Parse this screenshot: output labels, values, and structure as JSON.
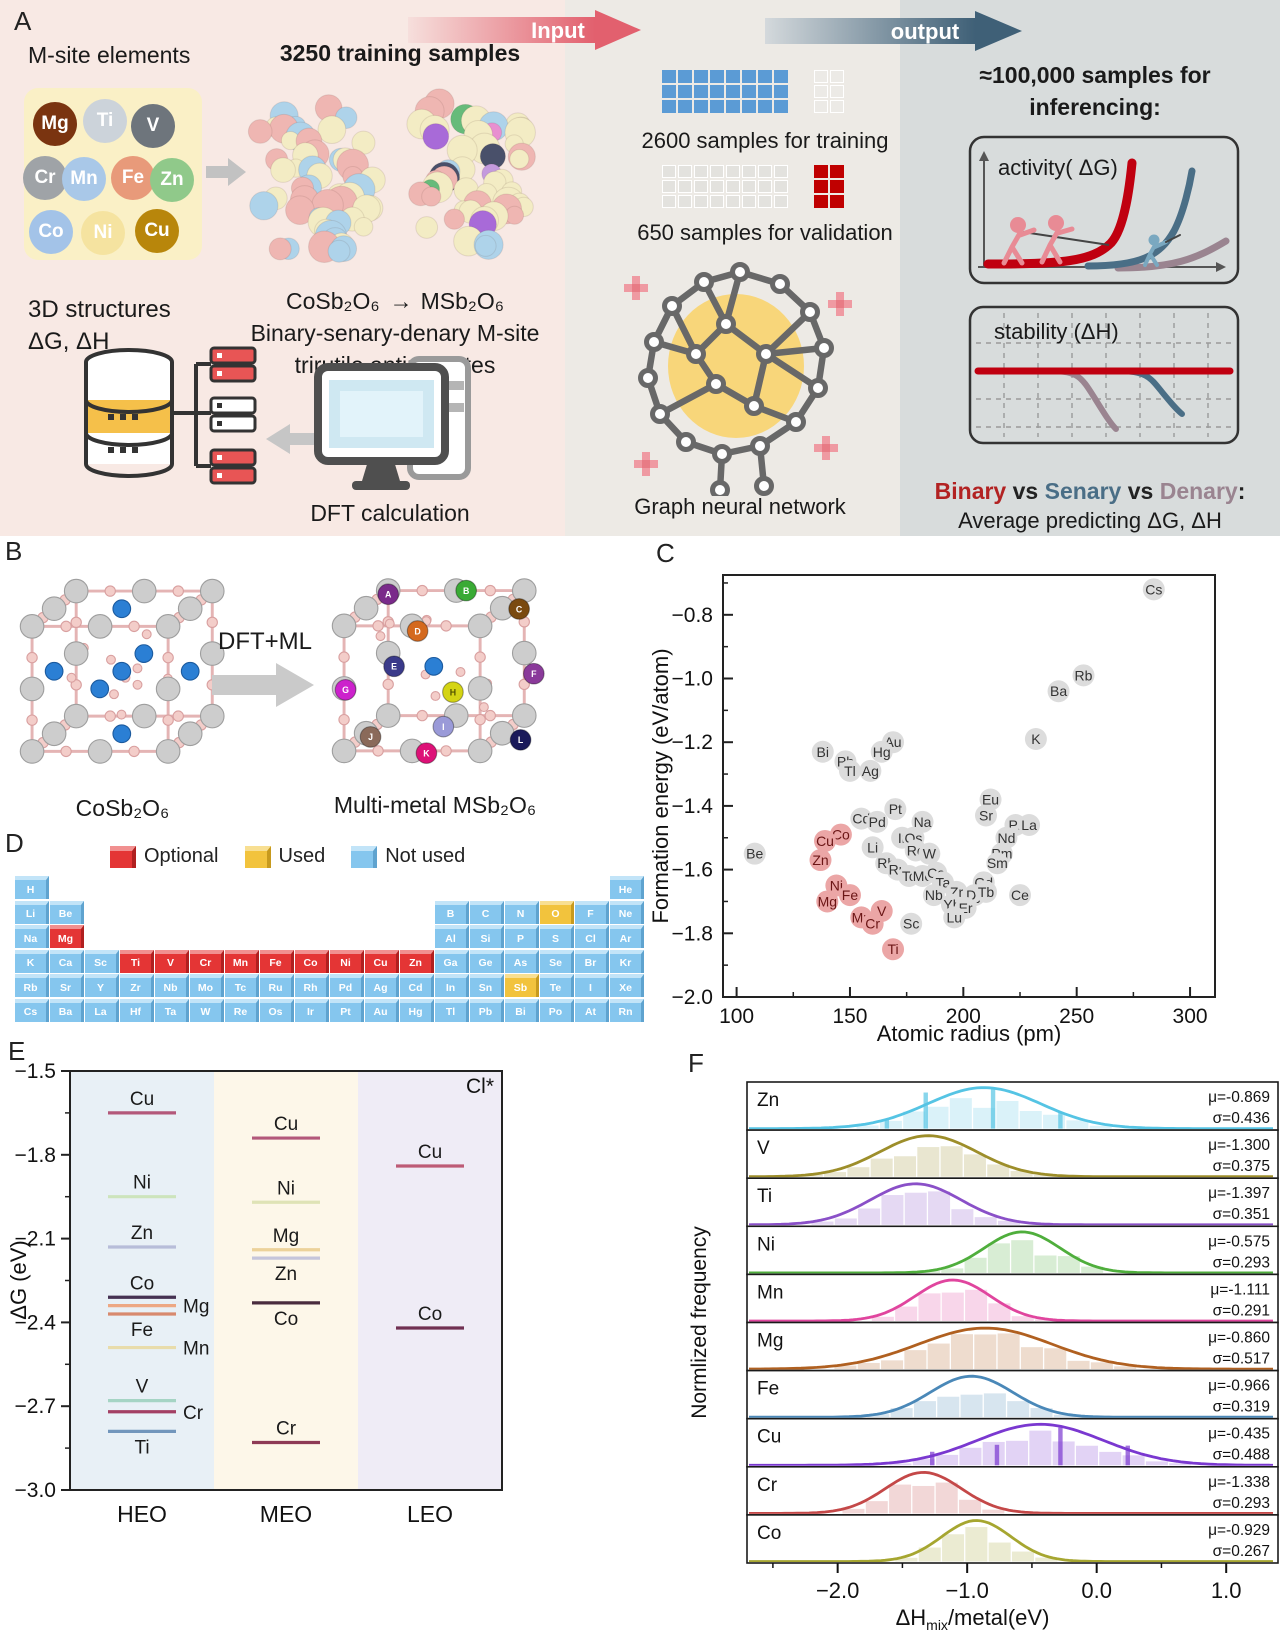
{
  "panel_labels": {
    "A": "A",
    "B": "B",
    "C": "C",
    "D": "D",
    "E": "E",
    "F": "F"
  },
  "panelA": {
    "input_arrow_label": "Input",
    "output_arrow_label": "output",
    "m_site_title": "M-site elements",
    "m_site_elements": [
      {
        "symbol": "Mg",
        "bg": "#7a3410"
      },
      {
        "symbol": "Ti",
        "bg": "#ccd3da"
      },
      {
        "symbol": "V",
        "bg": "#6e757c"
      },
      {
        "symbol": "Cr",
        "bg": "#9fa3a7"
      },
      {
        "symbol": "Mn",
        "bg": "#a9c8e8"
      },
      {
        "symbol": "Fe",
        "bg": "#e89a7a"
      },
      {
        "symbol": "Zn",
        "bg": "#90c98a"
      },
      {
        "symbol": "Co",
        "bg": "#a3c3e8"
      },
      {
        "symbol": "Ni",
        "bg": "#f5e3a0"
      },
      {
        "symbol": "Cu",
        "bg": "#b8860b"
      }
    ],
    "training_title": "3250 training samples",
    "formula_left": "CoSb₂O₆",
    "formula_arrow": "→",
    "formula_right": "MSb₂O₆",
    "training_sub1": "Binary-senary-denary M-site",
    "training_sub2": "trirutile antimonates",
    "structures_line1": "3D structures",
    "structures_line2": "ΔG, ΔH",
    "dft_label": "DFT calculation",
    "train_caption": "2600 samples for training",
    "val_caption": "650 samples for validation",
    "gnn_label": "Graph neural network",
    "inference_line1": "≈100,000 samples for",
    "inference_line2": "inferencing:",
    "activity_label": "activity( ΔG)",
    "stability_label": "stability (ΔH)",
    "compare_parts": [
      {
        "text": "Binary",
        "color": "#b22222"
      },
      {
        "text": " vs ",
        "color": "#222222"
      },
      {
        "text": "Senary",
        "color": "#4a6e86"
      },
      {
        "text": " vs ",
        "color": "#222222"
      },
      {
        "text": "Denary",
        "color": "#9a8490"
      },
      {
        "text": ":",
        "color": "#222222"
      }
    ],
    "compare_line2": "Average predicting  ΔG, ΔH"
  },
  "panelB": {
    "left_formula": "CoSb₂O₆",
    "arrow_label": "DFT+ML",
    "right_formula": "Multi-metal MSb₂O₆",
    "sites": [
      {
        "letter": "A",
        "color": "#7a2a8a",
        "tc": "#ffffff"
      },
      {
        "letter": "B",
        "color": "#3aaa35",
        "tc": "#ffffff"
      },
      {
        "letter": "C",
        "color": "#7a4a10",
        "tc": "#ffffff"
      },
      {
        "letter": "D",
        "color": "#d4691e",
        "tc": "#ffffff"
      },
      {
        "letter": "E",
        "color": "#3a3a8a",
        "tc": "#ffffff"
      },
      {
        "letter": "F",
        "color": "#8a3a9a",
        "tc": "#ffffff"
      },
      {
        "letter": "G",
        "color": "#cc22cc",
        "tc": "#ffffff"
      },
      {
        "letter": "H",
        "color": "#d4d414",
        "tc": "#555500"
      },
      {
        "letter": "I",
        "color": "#9a9ad8",
        "tc": "#ffffff"
      },
      {
        "letter": "J",
        "color": "#8a6a5a",
        "tc": "#ffffff"
      },
      {
        "letter": "K",
        "color": "#dd1177",
        "tc": "#ffffff"
      },
      {
        "letter": "L",
        "color": "#1a1a5a",
        "tc": "#ffffff"
      }
    ]
  },
  "panelD": {
    "legend": [
      {
        "label": "Optional",
        "type": "o"
      },
      {
        "label": "Used",
        "type": "u"
      },
      {
        "label": "Not used",
        "type": "n"
      }
    ],
    "rows": [
      [
        [
          "H",
          1,
          "n"
        ],
        [
          "He",
          18,
          "n"
        ]
      ],
      [
        [
          "Li",
          1,
          "n"
        ],
        [
          "Be",
          2,
          "n"
        ],
        [
          "B",
          13,
          "n"
        ],
        [
          "C",
          14,
          "n"
        ],
        [
          "N",
          15,
          "n"
        ],
        [
          "O",
          16,
          "u"
        ],
        [
          "F",
          17,
          "n"
        ],
        [
          "Ne",
          18,
          "n"
        ]
      ],
      [
        [
          "Na",
          1,
          "n"
        ],
        [
          "Mg",
          2,
          "o"
        ],
        [
          "Al",
          13,
          "n"
        ],
        [
          "Si",
          14,
          "n"
        ],
        [
          "P",
          15,
          "n"
        ],
        [
          "S",
          16,
          "n"
        ],
        [
          "Cl",
          17,
          "n"
        ],
        [
          "Ar",
          18,
          "n"
        ]
      ],
      [
        [
          "K",
          1,
          "n"
        ],
        [
          "Ca",
          2,
          "n"
        ],
        [
          "Sc",
          3,
          "n"
        ],
        [
          "Ti",
          4,
          "o"
        ],
        [
          "V",
          5,
          "o"
        ],
        [
          "Cr",
          6,
          "o"
        ],
        [
          "Mn",
          7,
          "o"
        ],
        [
          "Fe",
          8,
          "o"
        ],
        [
          "Co",
          9,
          "o"
        ],
        [
          "Ni",
          10,
          "o"
        ],
        [
          "Cu",
          11,
          "o"
        ],
        [
          "Zn",
          12,
          "o"
        ],
        [
          "Ga",
          13,
          "n"
        ],
        [
          "Ge",
          14,
          "n"
        ],
        [
          "As",
          15,
          "n"
        ],
        [
          "Se",
          16,
          "n"
        ],
        [
          "Br",
          17,
          "n"
        ],
        [
          "Kr",
          18,
          "n"
        ]
      ],
      [
        [
          "Rb",
          1,
          "n"
        ],
        [
          "Sr",
          2,
          "n"
        ],
        [
          "Y",
          3,
          "n"
        ],
        [
          "Zr",
          4,
          "n"
        ],
        [
          "Nb",
          5,
          "n"
        ],
        [
          "Mo",
          6,
          "n"
        ],
        [
          "Tc",
          7,
          "n"
        ],
        [
          "Ru",
          8,
          "n"
        ],
        [
          "Rh",
          9,
          "n"
        ],
        [
          "Pd",
          10,
          "n"
        ],
        [
          "Ag",
          11,
          "n"
        ],
        [
          "Cd",
          12,
          "n"
        ],
        [
          "In",
          13,
          "n"
        ],
        [
          "Sn",
          14,
          "n"
        ],
        [
          "Sb",
          15,
          "u"
        ],
        [
          "Te",
          16,
          "n"
        ],
        [
          "I",
          17,
          "n"
        ],
        [
          "Xe",
          18,
          "n"
        ]
      ],
      [
        [
          "Cs",
          1,
          "n"
        ],
        [
          "Ba",
          2,
          "n"
        ],
        [
          "La",
          3,
          "n"
        ],
        [
          "Hf",
          4,
          "n"
        ],
        [
          "Ta",
          5,
          "n"
        ],
        [
          "W",
          6,
          "n"
        ],
        [
          "Re",
          7,
          "n"
        ],
        [
          "Os",
          8,
          "n"
        ],
        [
          "Ir",
          9,
          "n"
        ],
        [
          "Pt",
          10,
          "n"
        ],
        [
          "Au",
          11,
          "n"
        ],
        [
          "Hg",
          12,
          "n"
        ],
        [
          "Tl",
          13,
          "n"
        ],
        [
          "Pb",
          14,
          "n"
        ],
        [
          "Bi",
          15,
          "n"
        ],
        [
          "Po",
          16,
          "n"
        ],
        [
          "At",
          17,
          "n"
        ],
        [
          "Rn",
          18,
          "n"
        ]
      ]
    ]
  },
  "chart_data": [
    {
      "id": "panel-c",
      "type": "scatter",
      "xlabel": "Atomic radius (pm)",
      "ylabel": "Formation energy (eV/atom)",
      "xlim": [
        94,
        311
      ],
      "ylim": [
        -2.0,
        -0.675
      ],
      "xticks": [
        100,
        150,
        200,
        250,
        300
      ],
      "yticks": [
        -0.8,
        -1.0,
        -1.2,
        -1.4,
        -1.6,
        -1.8,
        -2.0
      ],
      "point_color": "#dcdcdc",
      "highlight_color": "#eba6a6",
      "label_color": "#333333",
      "highlight_label_color": "#6b1515",
      "points": [
        [
          "Cs",
          284,
          -0.72,
          0
        ],
        [
          "Rb",
          253,
          -0.99,
          0
        ],
        [
          "Ba",
          242,
          -1.04,
          0
        ],
        [
          "K",
          232,
          -1.19,
          0
        ],
        [
          "Au",
          169,
          -1.2,
          0
        ],
        [
          "Hg",
          164,
          -1.23,
          0
        ],
        [
          "Bi",
          138,
          -1.23,
          0
        ],
        [
          "Pb",
          148,
          -1.26,
          0
        ],
        [
          "Tl",
          150,
          -1.29,
          0
        ],
        [
          "Ag",
          159,
          -1.29,
          0
        ],
        [
          "Eu",
          212,
          -1.38,
          0
        ],
        [
          "Pt",
          170,
          -1.41,
          0
        ],
        [
          "Sr",
          210,
          -1.43,
          0
        ],
        [
          "Cd",
          155,
          -1.44,
          0
        ],
        [
          "Pd",
          162,
          -1.45,
          0
        ],
        [
          "Na",
          182,
          -1.45,
          0
        ],
        [
          "Pr",
          223,
          -1.46,
          0
        ],
        [
          "La",
          229,
          -1.46,
          0
        ],
        [
          "Co",
          146,
          -1.49,
          1
        ],
        [
          "Cu",
          139,
          -1.51,
          1
        ],
        [
          "Ir",
          173,
          -1.5,
          0
        ],
        [
          "Os",
          178,
          -1.5,
          0
        ],
        [
          "Nd",
          219,
          -1.5,
          0
        ],
        [
          "Li",
          160,
          -1.53,
          0
        ],
        [
          "Re",
          179,
          -1.54,
          0
        ],
        [
          "W",
          185,
          -1.55,
          0
        ],
        [
          "Be",
          108,
          -1.55,
          0
        ],
        [
          "Pm",
          217,
          -1.55,
          0
        ],
        [
          "Sm",
          215,
          -1.58,
          0
        ],
        [
          "Zn",
          137,
          -1.57,
          1
        ],
        [
          "Rh",
          166,
          -1.58,
          0
        ],
        [
          "Ru",
          171,
          -1.6,
          0
        ],
        [
          "Tc",
          176,
          -1.62,
          0
        ],
        [
          "Mo",
          182,
          -1.62,
          0
        ],
        [
          "Ca",
          188,
          -1.61,
          0
        ],
        [
          "Ta",
          191,
          -1.64,
          0
        ],
        [
          "Gd",
          209,
          -1.64,
          0
        ],
        [
          "Ni",
          144,
          -1.65,
          1
        ],
        [
          "Fe",
          150,
          -1.68,
          1
        ],
        [
          "Nb",
          187,
          -1.68,
          0
        ],
        [
          "Zr",
          197,
          -1.67,
          0
        ],
        [
          "Dy",
          205,
          -1.68,
          0
        ],
        [
          "Tb",
          210,
          -1.67,
          0
        ],
        [
          "Ce",
          225,
          -1.68,
          0
        ],
        [
          "Mg",
          140,
          -1.7,
          1
        ],
        [
          "Yb",
          195,
          -1.71,
          0
        ],
        [
          "Er",
          201,
          -1.72,
          0
        ],
        [
          "V",
          164,
          -1.73,
          1
        ],
        [
          "Mn",
          155,
          -1.75,
          1
        ],
        [
          "Cr",
          160,
          -1.77,
          1
        ],
        [
          "Sc",
          177,
          -1.77,
          0
        ],
        [
          "Lu",
          196,
          -1.75,
          0
        ],
        [
          "Ti",
          169,
          -1.85,
          1
        ]
      ]
    },
    {
      "id": "panel-e",
      "type": "level_lines",
      "ylabel": "ΔG (eV)",
      "ylim": [
        -3.0,
        -1.5
      ],
      "yticks": [
        -1.5,
        -1.8,
        -2.1,
        -2.4,
        -2.7,
        -3.0
      ],
      "annotation": "Cl*",
      "groups": [
        {
          "name": "HEO",
          "band_color": "#e8f0f6",
          "levels": [
            {
              "el": "Cu",
              "v": -1.65,
              "color": "#b3587a",
              "pos": "above"
            },
            {
              "el": "Ni",
              "v": -1.95,
              "color": "#cde4bc",
              "pos": "above"
            },
            {
              "el": "Zn",
              "v": -2.13,
              "color": "#b7bdd9",
              "pos": "above"
            },
            {
              "el": "Co",
              "v": -2.31,
              "color": "#453152",
              "pos": "above"
            },
            {
              "el": "Mg",
              "v": -2.34,
              "color": "#eda884",
              "pos": "right"
            },
            {
              "el": "Fe",
              "v": -2.37,
              "color": "#d8896e",
              "pos": "below"
            },
            {
              "el": "Mn",
              "v": -2.49,
              "color": "#e8dcab",
              "pos": "right"
            },
            {
              "el": "V",
              "v": -2.68,
              "color": "#a5d4c4",
              "pos": "above"
            },
            {
              "el": "Cr",
              "v": -2.72,
              "color": "#a34064",
              "pos": "right"
            },
            {
              "el": "Ti",
              "v": -2.79,
              "color": "#7296bc",
              "pos": "below"
            }
          ]
        },
        {
          "name": "MEO",
          "band_color": "#fdf7e9",
          "levels": [
            {
              "el": "Cu",
              "v": -1.74,
              "color": "#b3587a",
              "pos": "above"
            },
            {
              "el": "Ni",
              "v": -1.97,
              "color": "#dfe3b6",
              "pos": "above"
            },
            {
              "el": "Mg",
              "v": -2.14,
              "color": "#ecd29a",
              "pos": "above"
            },
            {
              "el": "Zn",
              "v": -2.17,
              "color": "#c5c5db",
              "pos": "below"
            },
            {
              "el": "Co",
              "v": -2.33,
              "color": "#4a2c3e",
              "pos": "below"
            },
            {
              "el": "Cr",
              "v": -2.83,
              "color": "#8e3a55",
              "pos": "above"
            }
          ]
        },
        {
          "name": "LEO",
          "band_color": "#efecf6",
          "levels": [
            {
              "el": "Cu",
              "v": -1.84,
              "color": "#bd5b76",
              "pos": "above"
            },
            {
              "el": "Co",
              "v": -2.42,
              "color": "#703052",
              "pos": "above"
            }
          ]
        }
      ]
    },
    {
      "id": "panel-f",
      "type": "ridgeline",
      "xlabel_main": "ΔH",
      "xlabel_sub": "mix",
      "xlabel_rest": "/metal(eV)",
      "ylabel": "Normlized frequency",
      "xlim": [
        -2.7,
        1.4
      ],
      "xticks": [
        -2.0,
        -1.0,
        0.0,
        1.0
      ],
      "rows": [
        {
          "el": "Zn",
          "mu": -0.869,
          "sigma": 0.436,
          "color": "#55c4e4",
          "spikes": [
            [
              -1.62,
              0.22
            ],
            [
              -1.32,
              0.88
            ],
            [
              -0.8,
              1.0
            ],
            [
              -0.28,
              0.4
            ]
          ]
        },
        {
          "el": "V",
          "mu": -1.3,
          "sigma": 0.375,
          "color": "#9d8e2a",
          "spikes": []
        },
        {
          "el": "Ti",
          "mu": -1.397,
          "sigma": 0.351,
          "color": "#8a50c8",
          "spikes": []
        },
        {
          "el": "Ni",
          "mu": -0.575,
          "sigma": 0.293,
          "color": "#4fae3c",
          "spikes": []
        },
        {
          "el": "Mn",
          "mu": -1.111,
          "sigma": 0.291,
          "color": "#e0459e",
          "spikes": []
        },
        {
          "el": "Mg",
          "mu": -0.86,
          "sigma": 0.517,
          "color": "#b06020",
          "spikes": []
        },
        {
          "el": "Fe",
          "mu": -0.966,
          "sigma": 0.319,
          "color": "#4a88b8",
          "spikes": []
        },
        {
          "el": "Cu",
          "mu": -0.435,
          "sigma": 0.488,
          "color": "#7a38d0",
          "spikes": [
            [
              -1.27,
              0.33
            ],
            [
              -0.77,
              0.5
            ],
            [
              -0.28,
              0.92
            ],
            [
              0.24,
              0.48
            ]
          ]
        },
        {
          "el": "Cr",
          "mu": -1.338,
          "sigma": 0.293,
          "color": "#c44848",
          "spikes": []
        },
        {
          "el": "Co",
          "mu": -0.929,
          "sigma": 0.267,
          "color": "#a6a630",
          "spikes": []
        }
      ]
    }
  ]
}
